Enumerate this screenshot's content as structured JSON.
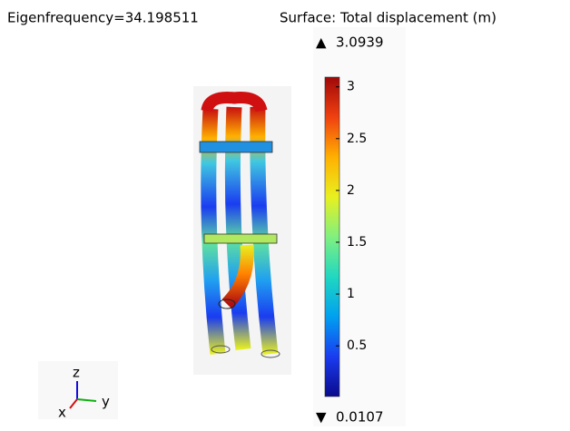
{
  "header": {
    "left": "Eigenfrequency=34.198511",
    "right": "Surface: Total displacement (m)"
  },
  "colorbar": {
    "max": 3.0939,
    "min": 0.0107,
    "ticks": [
      0.5,
      1,
      1.5,
      2,
      2.5,
      3
    ],
    "colormap": [
      "#0a0a8c",
      "#1a3cf0",
      "#00a0f0",
      "#20d8c0",
      "#80f080",
      "#e8f020",
      "#ffb000",
      "#f04010",
      "#a00808"
    ],
    "max_marker": "▲",
    "min_marker": "▼"
  },
  "triad": {
    "z": "z",
    "y": "y",
    "x": "x"
  }
}
